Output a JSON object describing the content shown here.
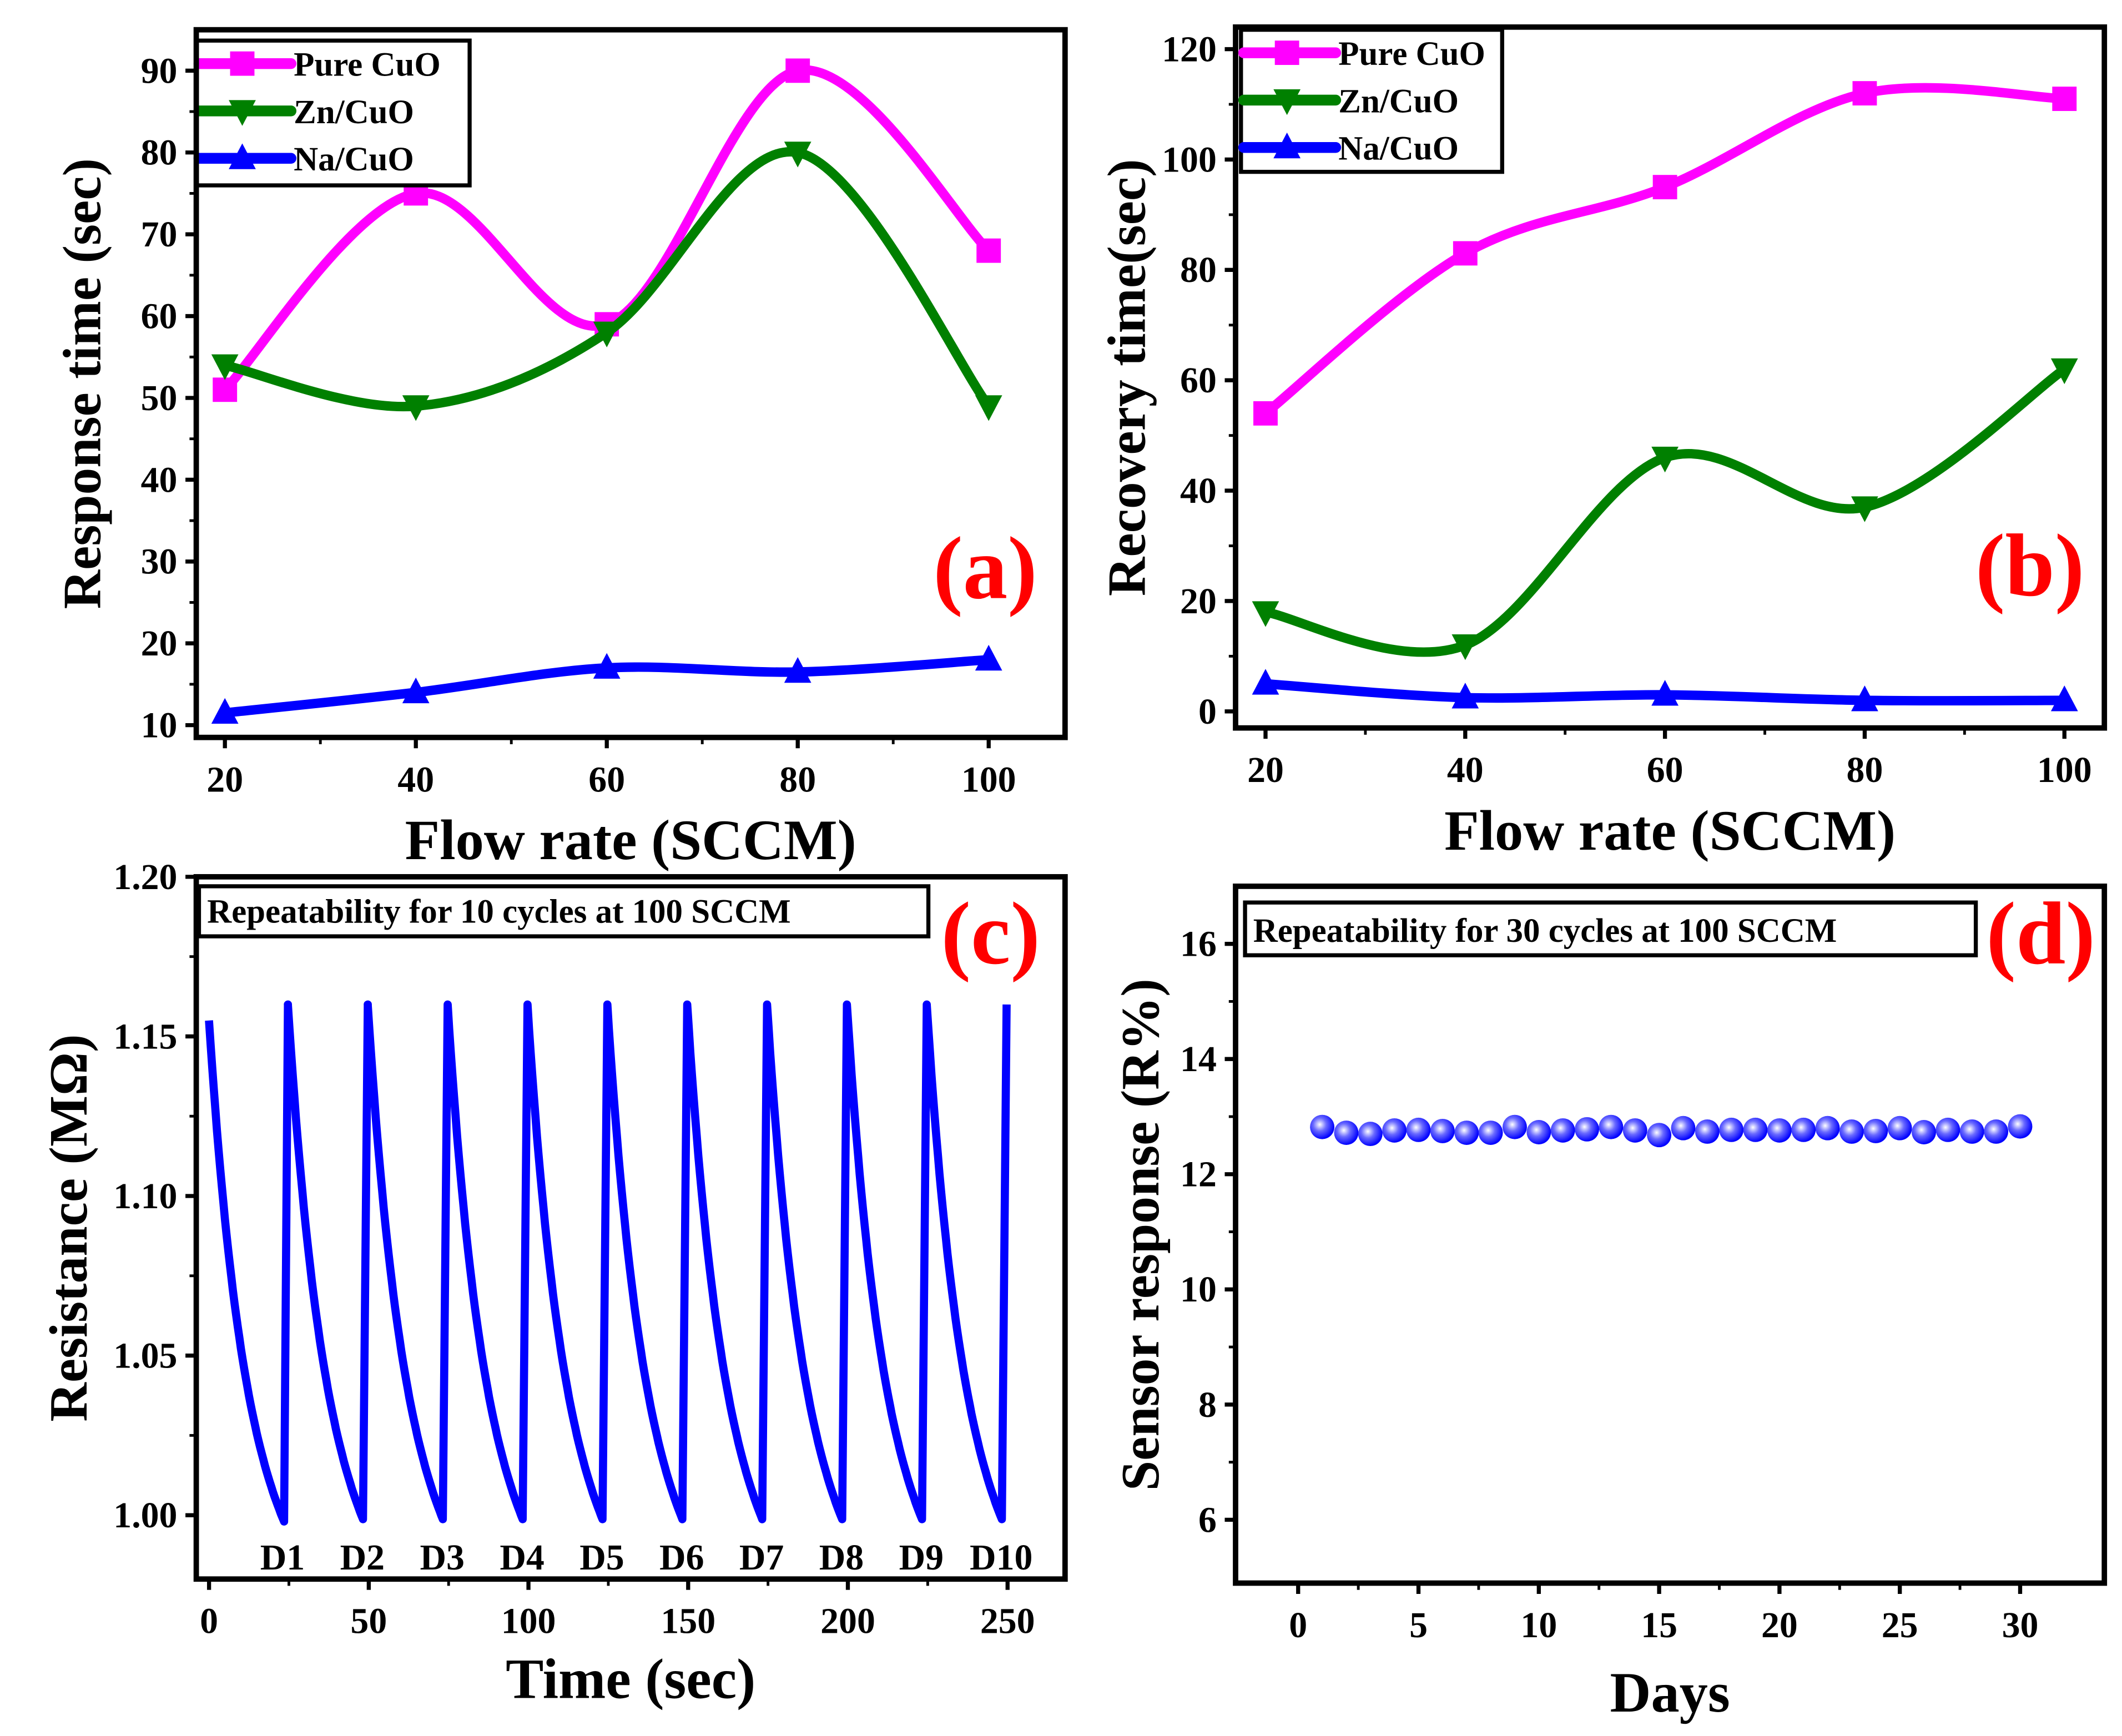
{
  "colors": {
    "pure": "#ff00ff",
    "zn": "#008000",
    "na": "#0000ff",
    "panel_label": "#ff0000"
  },
  "chart_data": [
    {
      "id": "a",
      "type": "line",
      "panel_label": "(a)",
      "xlabel": "Flow rate (SCCM)",
      "ylabel": "Response time (sec)",
      "xlim": [
        17,
        108
      ],
      "ylim": [
        8.5,
        95
      ],
      "xticks": [
        20,
        40,
        60,
        80,
        100
      ],
      "yticks": [
        10,
        20,
        30,
        40,
        50,
        60,
        70,
        80,
        90
      ],
      "legend_position": "top-left",
      "x": [
        20,
        40,
        60,
        80,
        100
      ],
      "series": [
        {
          "name": "Pure CuO",
          "color": "#ff00ff",
          "marker": "square",
          "values": [
            51,
            75,
            59,
            90,
            68
          ]
        },
        {
          "name": "Zn/CuO",
          "color": "#008000",
          "marker": "triangle-down",
          "values": [
            54,
            49,
            58,
            80,
            49
          ]
        },
        {
          "name": "Na/CuO",
          "color": "#0000ff",
          "marker": "triangle-up",
          "values": [
            11.5,
            14,
            17,
            16.5,
            18
          ]
        }
      ]
    },
    {
      "id": "b",
      "type": "line",
      "panel_label": "(b)",
      "xlabel": "Flow rate (SCCM)",
      "ylabel": "Recovery time(sec)",
      "xlim": [
        17,
        104
      ],
      "ylim": [
        -3,
        124
      ],
      "xticks": [
        20,
        40,
        60,
        80,
        100
      ],
      "yticks": [
        0,
        20,
        40,
        60,
        80,
        100,
        120
      ],
      "legend_position": "top-left",
      "x": [
        20,
        40,
        60,
        80,
        100
      ],
      "series": [
        {
          "name": "Pure CuO",
          "color": "#ff00ff",
          "marker": "square",
          "values": [
            54,
            83,
            95,
            112,
            111
          ]
        },
        {
          "name": "Zn/CuO",
          "color": "#008000",
          "marker": "triangle-down",
          "values": [
            18,
            12,
            46,
            37,
            62
          ]
        },
        {
          "name": "Na/CuO",
          "color": "#0000ff",
          "marker": "triangle-up",
          "values": [
            5,
            2.5,
            3,
            2,
            2
          ]
        }
      ]
    },
    {
      "id": "c",
      "type": "line",
      "panel_label": "(c)",
      "xlabel": "Time (sec)",
      "ylabel": "Resistance (MΩ)",
      "xlim": [
        -4,
        268
      ],
      "ylim": [
        0.98,
        1.2
      ],
      "xticks": [
        0,
        50,
        100,
        150,
        200,
        250
      ],
      "yticks": [
        "1.00",
        "1.05",
        "1.10",
        "1.15",
        "1.20"
      ],
      "annotation": "Repeatability  for 10 cycles at 100 SCCM",
      "series": [
        {
          "name": "Resistance",
          "color": "#0000ff"
        }
      ],
      "cycles": {
        "count": 10,
        "period_sec": 25,
        "start_value": 1.155,
        "max_value": 1.16,
        "min_value": 0.998
      },
      "cycle_labels": [
        "D1",
        "D2",
        "D3",
        "D4",
        "D5",
        "D6",
        "D7",
        "D8",
        "D9",
        "D10"
      ]
    },
    {
      "id": "d",
      "type": "scatter",
      "panel_label": "(d)",
      "xlabel": "Days",
      "ylabel": "Sensor response (R%)",
      "xlim": [
        -2.6,
        33.5
      ],
      "ylim": [
        4.9,
        17
      ],
      "xticks": [
        0,
        5,
        10,
        15,
        20,
        25,
        30
      ],
      "yticks": [
        6,
        8,
        10,
        12,
        14,
        16
      ],
      "annotation": "Repeatability  for 30 cycles at 100 SCCM",
      "x": [
        1,
        2,
        3,
        4,
        5,
        6,
        7,
        8,
        9,
        10,
        11,
        12,
        13,
        14,
        15,
        16,
        17,
        18,
        19,
        20,
        21,
        22,
        23,
        24,
        25,
        26,
        27,
        28,
        29,
        30
      ],
      "series": [
        {
          "name": "Sensor response",
          "color": "#0000ff",
          "values": [
            12.82,
            12.72,
            12.7,
            12.76,
            12.77,
            12.75,
            12.72,
            12.72,
            12.82,
            12.73,
            12.76,
            12.78,
            12.82,
            12.76,
            12.68,
            12.8,
            12.74,
            12.77,
            12.77,
            12.76,
            12.77,
            12.8,
            12.74,
            12.75,
            12.8,
            12.73,
            12.77,
            12.74,
            12.74,
            12.83
          ]
        }
      ]
    }
  ]
}
